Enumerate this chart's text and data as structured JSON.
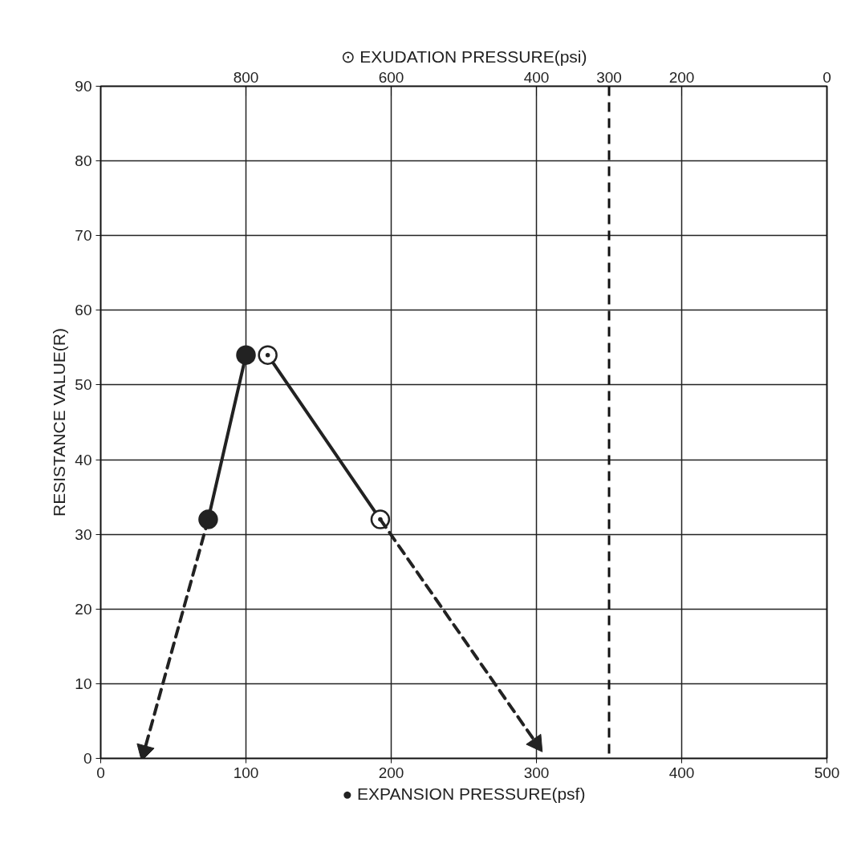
{
  "chart_data": {
    "type": "line",
    "xlabel": "● EXPANSION PRESSURE(psf)",
    "x2label": "⊙ EXUDATION PRESSURE(psi)",
    "ylabel": "RESISTANCE VALUE(R)",
    "xlim": [
      0,
      500
    ],
    "xticks": [
      0,
      100,
      200,
      300,
      400,
      500
    ],
    "x2lim": [
      1000,
      0
    ],
    "x2ticks": [
      800,
      600,
      400,
      300,
      200,
      0
    ],
    "ylim": [
      0,
      90
    ],
    "yticks": [
      0,
      10,
      20,
      30,
      40,
      50,
      60,
      70,
      80,
      90
    ],
    "grid": true,
    "series": [
      {
        "color": "#222222",
        "marker": "circle",
        "line_style": "solid",
        "x": [
          74,
          100
        ],
        "values": [
          32,
          54
        ]
      },
      {
        "color": "#222222",
        "marker": "triangle",
        "line_style": "dashed",
        "x": [
          74,
          30
        ],
        "values": [
          32,
          1
        ]
      },
      {
        "color": "#222222",
        "marker": "circle_dot",
        "line_style": "solid",
        "axis": "x2",
        "x": [
          770,
          615
        ],
        "values": [
          54,
          32
        ]
      },
      {
        "color": "#222222",
        "marker": "triangle",
        "line_style": "dashed",
        "axis": "x2",
        "x": [
          615,
          400
        ],
        "values": [
          32,
          2
        ]
      }
    ],
    "ref_lines": [
      {
        "axis": "x",
        "value": 350,
        "label": null,
        "color": "#111111",
        "line_style": "dashed"
      }
    ]
  }
}
